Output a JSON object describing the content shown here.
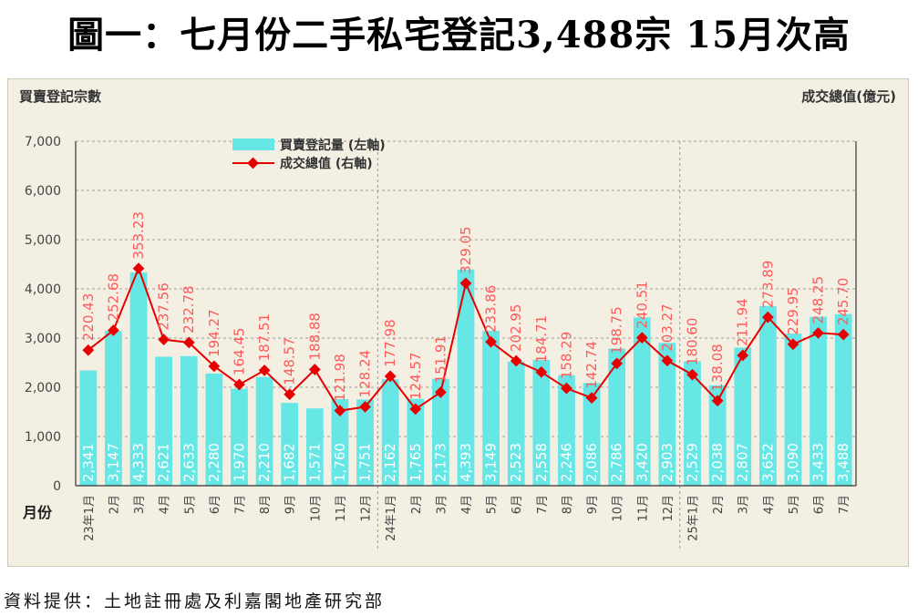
{
  "headline": "圖一：七月份二手私宅登記3,488宗  15月次高",
  "source": "資料提供：土地註冊處及利嘉閣地產研究部",
  "chart_data": {
    "type": "bar",
    "left_axis_title": "買賣登記宗數",
    "right_axis_title": "成交總值(億元)",
    "x_axis_title": "月份",
    "y_ticks": [
      "7,000",
      "6,000",
      "5,000",
      "4,000",
      "3,000",
      "2,000",
      "1,000",
      "0"
    ],
    "ylim": [
      0,
      7000
    ],
    "right_ylim": [
      0,
      560
    ],
    "categories": [
      "23年1月",
      "2月",
      "3月",
      "4月",
      "5月",
      "6月",
      "7月",
      "8月",
      "9月",
      "10月",
      "11月",
      "12月",
      "24年1月",
      "2月",
      "3月",
      "4月",
      "5月",
      "6月",
      "7月",
      "8月",
      "9月",
      "10月",
      "11月",
      "12月",
      "25年1月",
      "2月",
      "3月",
      "4月",
      "5月",
      "6月",
      "7月"
    ],
    "year_dividers_before": [
      12,
      24
    ],
    "series": [
      {
        "name": "買賣登記量 (左軸)",
        "kind": "bar",
        "color": "#67e6e6",
        "values": [
          2341,
          3147,
          4333,
          2621,
          2633,
          2280,
          1970,
          2210,
          1682,
          1571,
          1760,
          1751,
          2162,
          1765,
          2173,
          4393,
          3149,
          2523,
          2558,
          2246,
          2086,
          2786,
          3420,
          2903,
          2529,
          2038,
          2807,
          3652,
          3090,
          3433,
          3488
        ],
        "labels": [
          "2,341",
          "3,147",
          "4,333",
          "2,621",
          "2,633",
          "2,280",
          "1,970",
          "2,210",
          "1,682",
          "1,571",
          "1,760",
          "1,751",
          "2,162",
          "1,765",
          "2,173",
          "4,393",
          "3,149",
          "2,523",
          "2,558",
          "2,246",
          "2,086",
          "2,786",
          "3,420",
          "2,903",
          "2,529",
          "2,038",
          "2,807",
          "3,652",
          "3,090",
          "3,433",
          "3,488"
        ]
      },
      {
        "name": "成交總值 (右軸)",
        "kind": "line",
        "color": "#e60000",
        "values": [
          220.43,
          252.68,
          353.23,
          237.56,
          232.78,
          194.27,
          164.45,
          187.51,
          148.57,
          188.88,
          121.98,
          128.24,
          177.98,
          124.57,
          151.91,
          329.05,
          233.86,
          202.95,
          184.71,
          158.29,
          142.74,
          198.75,
          240.51,
          203.27,
          180.6,
          138.08,
          211.94,
          273.89,
          229.95,
          248.25,
          245.7
        ],
        "labels": [
          "220.43",
          "252.68",
          "353.23",
          "237.56",
          "232.78",
          "194.27",
          "164.45",
          "187.51",
          "148.57",
          "188.88",
          "121.98",
          "128.24",
          "177.98",
          "124.57",
          "151.91",
          "329.05",
          "233.86",
          "202.95",
          "184.71",
          "158.29",
          "142.74",
          "198.75",
          "240.51",
          "203.27",
          "180.60",
          "138.08",
          "211.94",
          "273.89",
          "229.95",
          "248.25",
          "245.70"
        ]
      }
    ],
    "grid": "horizontal-dashed",
    "legend": "top-left"
  }
}
